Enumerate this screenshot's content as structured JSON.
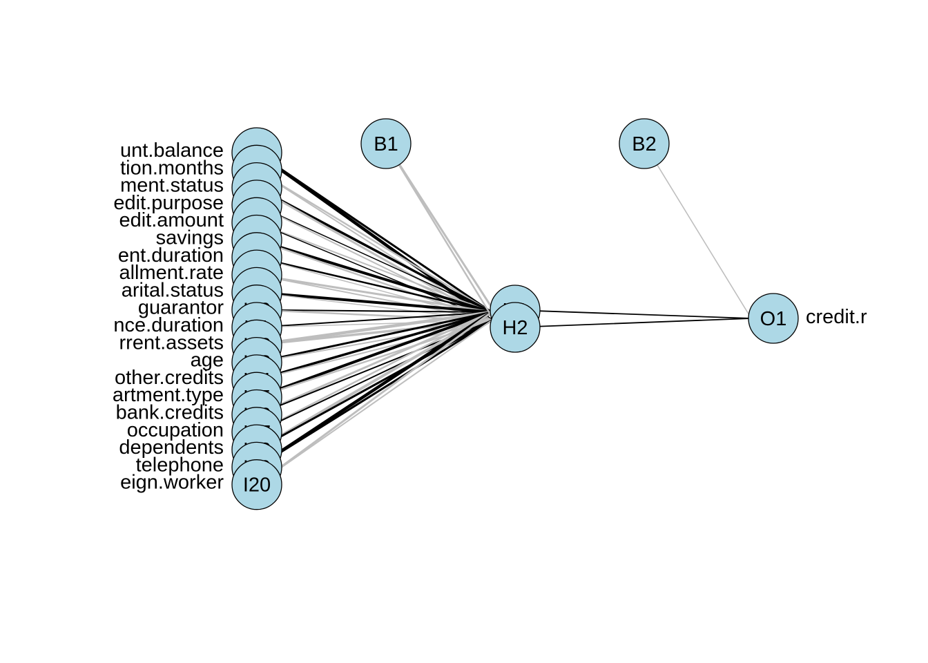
{
  "network": {
    "node_fill": "#add8e6",
    "positive_weight_color": "#000000",
    "negative_weight_color": "#bebebe",
    "inputs": [
      {
        "id": "I1",
        "label": "unt.balance"
      },
      {
        "id": "I2",
        "label": "tion.months"
      },
      {
        "id": "I3",
        "label": "ment.status"
      },
      {
        "id": "I4",
        "label": "edit.purpose"
      },
      {
        "id": "I5",
        "label": "edit.amount"
      },
      {
        "id": "I6",
        "label": "savings"
      },
      {
        "id": "I7",
        "label": "ent.duration"
      },
      {
        "id": "I8",
        "label": "allment.rate"
      },
      {
        "id": "I9",
        "label": "arital.status"
      },
      {
        "id": "I10",
        "label": "guarantor"
      },
      {
        "id": "I11",
        "label": "nce.duration"
      },
      {
        "id": "I12",
        "label": "rrent.assets"
      },
      {
        "id": "I13",
        "label": "age"
      },
      {
        "id": "I14",
        "label": "other.credits"
      },
      {
        "id": "I15",
        "label": "artment.type"
      },
      {
        "id": "I16",
        "label": "bank.credits"
      },
      {
        "id": "I17",
        "label": "occupation"
      },
      {
        "id": "I18",
        "label": "dependents"
      },
      {
        "id": "I19",
        "label": "telephone"
      },
      {
        "id": "I20",
        "label": "eign.worker"
      }
    ],
    "bias_nodes": [
      {
        "id": "B1"
      },
      {
        "id": "B2"
      }
    ],
    "hidden": [
      {
        "id": "H1"
      },
      {
        "id": "H2"
      }
    ],
    "output": {
      "id": "O1",
      "label": "credit.r"
    },
    "connections": {
      "input_to_hidden": [
        {
          "from": "I1",
          "H1": {
            "sign": "positive",
            "strength": 3.0
          },
          "H2": {
            "sign": "positive",
            "strength": 4.5
          }
        },
        {
          "from": "I2",
          "H1": {
            "sign": "negative",
            "strength": 2.5
          },
          "H2": {
            "sign": "negative",
            "strength": 2.0
          }
        },
        {
          "from": "I3",
          "H1": {
            "sign": "positive",
            "strength": 3.5
          },
          "H2": {
            "sign": "negative",
            "strength": 3.0
          }
        },
        {
          "from": "I4",
          "H1": {
            "sign": "positive",
            "strength": 1.5
          },
          "H2": {
            "sign": "negative",
            "strength": 2.0
          }
        },
        {
          "from": "I5",
          "H1": {
            "sign": "negative",
            "strength": 2.0
          },
          "H2": {
            "sign": "positive",
            "strength": 1.5
          }
        },
        {
          "from": "I6",
          "H1": {
            "sign": "positive",
            "strength": 4.0
          },
          "H2": {
            "sign": "negative",
            "strength": 2.5
          }
        },
        {
          "from": "I7",
          "H1": {
            "sign": "positive",
            "strength": 2.5
          },
          "H2": {
            "sign": "negative",
            "strength": 1.5
          }
        },
        {
          "from": "I8",
          "H1": {
            "sign": "negative",
            "strength": 3.0
          },
          "H2": {
            "sign": "negative",
            "strength": 2.0
          }
        },
        {
          "from": "I9",
          "H1": {
            "sign": "positive",
            "strength": 4.0
          },
          "H2": {
            "sign": "negative",
            "strength": 1.5
          }
        },
        {
          "from": "I10",
          "H1": {
            "sign": "positive",
            "strength": 2.0
          },
          "H2": {
            "sign": "negative",
            "strength": 2.5
          }
        },
        {
          "from": "I11",
          "H1": {
            "sign": "positive",
            "strength": 2.0
          },
          "H2": {
            "sign": "negative",
            "strength": 1.5
          }
        },
        {
          "from": "I12",
          "H1": {
            "sign": "negative",
            "strength": 4.5
          },
          "H2": {
            "sign": "negative",
            "strength": 3.5
          }
        },
        {
          "from": "I13",
          "H1": {
            "sign": "positive",
            "strength": 3.0
          },
          "H2": {
            "sign": "negative",
            "strength": 2.0
          }
        },
        {
          "from": "I14",
          "H1": {
            "sign": "positive",
            "strength": 3.5
          },
          "H2": {
            "sign": "negative",
            "strength": 2.0
          }
        },
        {
          "from": "I15",
          "H1": {
            "sign": "positive",
            "strength": 4.0
          },
          "H2": {
            "sign": "negative",
            "strength": 2.5
          }
        },
        {
          "from": "I16",
          "H1": {
            "sign": "negative",
            "strength": 3.0
          },
          "H2": {
            "sign": "positive",
            "strength": 2.0
          }
        },
        {
          "from": "I17",
          "H1": {
            "sign": "negative",
            "strength": 2.5
          },
          "H2": {
            "sign": "positive",
            "strength": 2.0
          }
        },
        {
          "from": "I18",
          "H1": {
            "sign": "negative",
            "strength": 4.0
          },
          "H2": {
            "sign": "positive",
            "strength": 3.0
          }
        },
        {
          "from": "I19",
          "H1": {
            "sign": "positive",
            "strength": 4.5
          },
          "H2": {
            "sign": "positive",
            "strength": 3.0
          }
        },
        {
          "from": "I20",
          "H1": {
            "sign": "negative",
            "strength": 3.0
          },
          "H2": {
            "sign": "negative",
            "strength": 2.0
          }
        }
      ],
      "bias_to_hidden": [
        {
          "from": "B1",
          "to": "H1",
          "sign": "negative",
          "strength": 3.0
        },
        {
          "from": "B1",
          "to": "H2",
          "sign": "negative",
          "strength": 2.5
        }
      ],
      "hidden_to_output": [
        {
          "from": "H1",
          "to": "O1",
          "sign": "positive",
          "strength": 1.8
        },
        {
          "from": "H2",
          "to": "O1",
          "sign": "positive",
          "strength": 1.8
        }
      ],
      "bias_to_output": [
        {
          "from": "B2",
          "to": "O1",
          "sign": "negative",
          "strength": 1.6
        }
      ]
    }
  }
}
